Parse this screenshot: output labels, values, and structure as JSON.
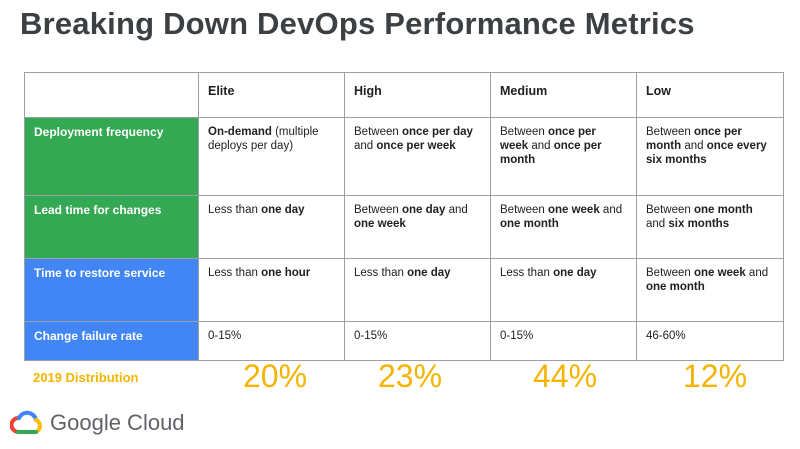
{
  "title": "Breaking Down DevOps Performance Metrics",
  "columns": [
    "",
    "Elite",
    "High",
    "Medium",
    "Low"
  ],
  "rows": [
    {
      "label": "Deployment frequency",
      "color": "#34a853",
      "cells": [
        [
          {
            "t": "On-demand",
            "b": true
          },
          {
            "t": " (multiple deploys per day)",
            "b": false
          }
        ],
        [
          {
            "t": "Between ",
            "b": false
          },
          {
            "t": "once per day",
            "b": true
          },
          {
            "t": " and ",
            "b": false
          },
          {
            "t": "once per week",
            "b": true
          }
        ],
        [
          {
            "t": "Between ",
            "b": false
          },
          {
            "t": "once per week",
            "b": true
          },
          {
            "t": " and ",
            "b": false
          },
          {
            "t": "once per month",
            "b": true
          }
        ],
        [
          {
            "t": "Between ",
            "b": false
          },
          {
            "t": "once per month",
            "b": true
          },
          {
            "t": " and ",
            "b": false
          },
          {
            "t": "once every six months",
            "b": true
          }
        ]
      ]
    },
    {
      "label": "Lead time for changes",
      "color": "#34a853",
      "cells": [
        [
          {
            "t": "Less than ",
            "b": false
          },
          {
            "t": "one day",
            "b": true
          }
        ],
        [
          {
            "t": "Between ",
            "b": false
          },
          {
            "t": "one day",
            "b": true
          },
          {
            "t": " and ",
            "b": false
          },
          {
            "t": "one week",
            "b": true
          }
        ],
        [
          {
            "t": "Between ",
            "b": false
          },
          {
            "t": "one week",
            "b": true
          },
          {
            "t": " and ",
            "b": false
          },
          {
            "t": "one month",
            "b": true
          }
        ],
        [
          {
            "t": "Between ",
            "b": false
          },
          {
            "t": "one month",
            "b": true
          },
          {
            "t": " and ",
            "b": false
          },
          {
            "t": "six months",
            "b": true
          }
        ]
      ]
    },
    {
      "label": "Time to restore service",
      "color": "#4285f4",
      "cells": [
        [
          {
            "t": "Less than ",
            "b": false
          },
          {
            "t": "one hour",
            "b": true
          }
        ],
        [
          {
            "t": "Less than ",
            "b": false
          },
          {
            "t": "one day",
            "b": true
          }
        ],
        [
          {
            "t": "Less than ",
            "b": false
          },
          {
            "t": "one day",
            "b": true
          }
        ],
        [
          {
            "t": "Between ",
            "b": false
          },
          {
            "t": "one week",
            "b": true
          },
          {
            "t": " and ",
            "b": false
          },
          {
            "t": "one month",
            "b": true
          }
        ]
      ]
    },
    {
      "label": "Change failure rate",
      "color": "#4285f4",
      "cells": [
        [
          {
            "t": "0-15%",
            "b": false
          }
        ],
        [
          {
            "t": "0-15%",
            "b": false
          }
        ],
        [
          {
            "t": "0-15%",
            "b": false
          }
        ],
        [
          {
            "t": "46-60%",
            "b": false
          }
        ]
      ]
    }
  ],
  "distribution": {
    "label": "2019 Distribution",
    "values": [
      "20%",
      "23%",
      "44%",
      "12%"
    ]
  },
  "logo": {
    "text": "Google Cloud",
    "icon": "google-cloud-icon",
    "colors": {
      "red": "#ea4335",
      "blue": "#4285f4",
      "yellow": "#fbbc04",
      "green": "#34a853"
    }
  },
  "colors": {
    "accent_yellow": "#f4b400",
    "green": "#34a853",
    "blue": "#4285f4"
  }
}
